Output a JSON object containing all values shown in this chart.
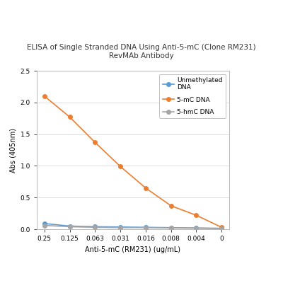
{
  "title": "ELISA of Single Stranded DNA Using Anti-5-mC (Clone RM231)\nRevMAb Antibody",
  "xlabel": "Anti-5-mC (RM231) (ug/mL)",
  "ylabel": "Abs (405nm)",
  "x_tick_labels": [
    "0.25",
    "0.125",
    "0.063",
    "0.031",
    "0.016",
    "0.008",
    "0.004",
    "0"
  ],
  "x_positions": [
    0,
    1,
    2,
    3,
    4,
    5,
    6,
    7
  ],
  "unmethylated_dna": [
    0.09,
    0.05,
    0.04,
    0.035,
    0.03,
    0.025,
    0.02,
    0.015
  ],
  "five_mc_dna": [
    2.1,
    1.77,
    1.37,
    0.99,
    0.65,
    0.37,
    0.22,
    0.03
  ],
  "five_hmc_dna": [
    0.06,
    0.04,
    0.03,
    0.025,
    0.025,
    0.02,
    0.015,
    0.01
  ],
  "unmethylated_color": "#5b9bd5",
  "five_mc_color": "#ed7d31",
  "five_hmc_color": "#a5a5a5",
  "ylim": [
    0,
    2.5
  ],
  "yticks": [
    0.0,
    0.5,
    1.0,
    1.5,
    2.0,
    2.5
  ],
  "legend_labels": [
    "Unmethylated\nDNA",
    "5-mC DNA",
    "5-hmC DNA"
  ],
  "title_fontsize": 7.5,
  "axis_label_fontsize": 7.0,
  "tick_fontsize": 6.5,
  "legend_fontsize": 6.5,
  "figure_bg_color": "#ffffff",
  "plot_bg_color": "#ffffff",
  "marker": "o",
  "linewidth": 1.2,
  "markersize": 4
}
